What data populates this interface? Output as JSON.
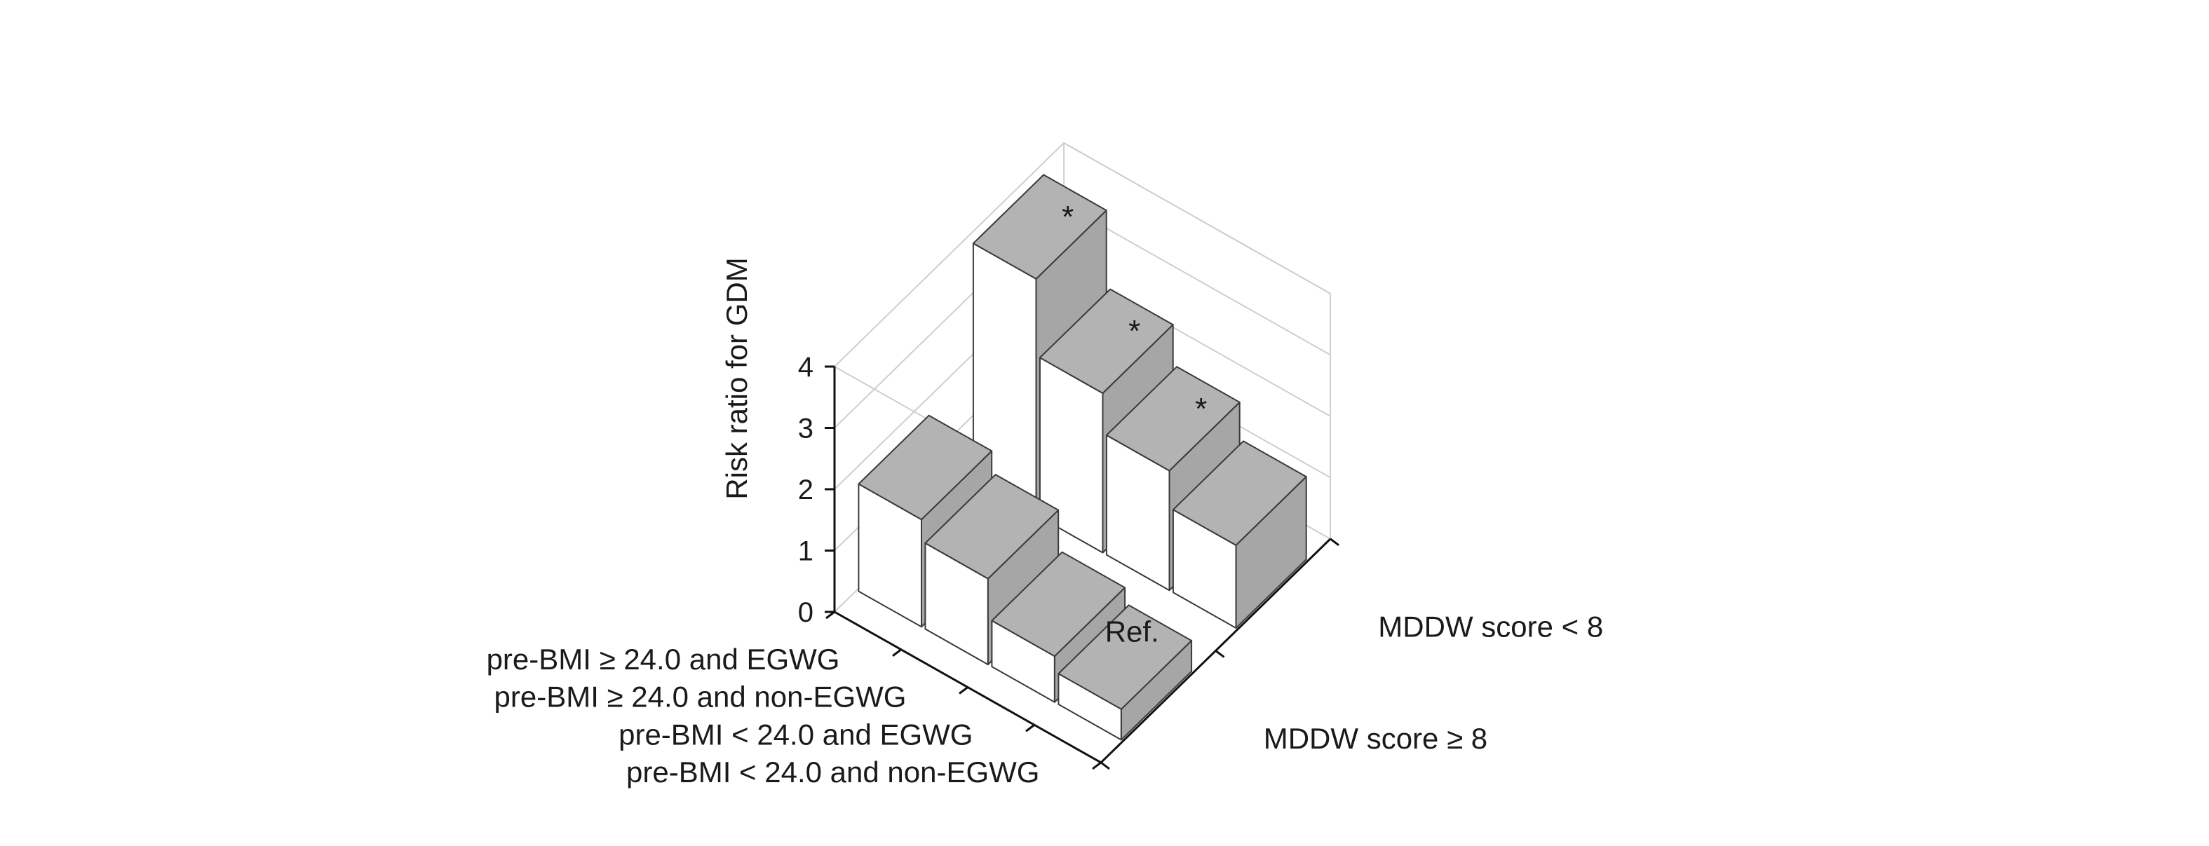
{
  "chart_data": {
    "type": "bar3d",
    "ylabel": "Risk ratio for GDM",
    "ylim": [
      0,
      4
    ],
    "yticks": [
      0,
      1,
      2,
      3,
      4
    ],
    "grid": true,
    "row_categories": [
      "pre-BMI ≥ 24.0 and EGWG",
      "pre-BMI ≥ 24.0 and non-EGWG",
      "pre-BMI < 24.0 and EGWG",
      "pre-BMI < 24.0 and non-EGWG"
    ],
    "column_categories": [
      "MDDW score < 8",
      "MDDW score ≥ 8"
    ],
    "values": [
      {
        "row": "pre-BMI ≥ 24.0 and EGWG",
        "col": "MDDW score < 8",
        "value": 3.85,
        "annotation": "*"
      },
      {
        "row": "pre-BMI ≥ 24.0 and non-EGWG",
        "col": "MDDW score < 8",
        "value": 2.6,
        "annotation": "*"
      },
      {
        "row": "pre-BMI < 24.0 and EGWG",
        "col": "MDDW score < 8",
        "value": 1.95,
        "annotation": "*"
      },
      {
        "row": "pre-BMI < 24.0 and non-EGWG",
        "col": "MDDW score < 8",
        "value": 1.35,
        "annotation": ""
      },
      {
        "row": "pre-BMI ≥ 24.0 and EGWG",
        "col": "MDDW score ≥ 8",
        "value": 1.75,
        "annotation": ""
      },
      {
        "row": "pre-BMI ≥ 24.0 and non-EGWG",
        "col": "MDDW score ≥ 8",
        "value": 1.4,
        "annotation": ""
      },
      {
        "row": "pre-BMI < 24.0 and EGWG",
        "col": "MDDW score ≥ 8",
        "value": 0.75,
        "annotation": ""
      },
      {
        "row": "pre-BMI < 24.0 and non-EGWG",
        "col": "MDDW score ≥ 8",
        "value": 0.5,
        "annotation": "Ref."
      }
    ],
    "colors": {
      "front": "#ffffff",
      "top": "#b3b3b3",
      "side": "#a6a6a6",
      "edge": "#3a3a3a",
      "grid": "#cfcfcf",
      "axis": "#111111"
    }
  }
}
